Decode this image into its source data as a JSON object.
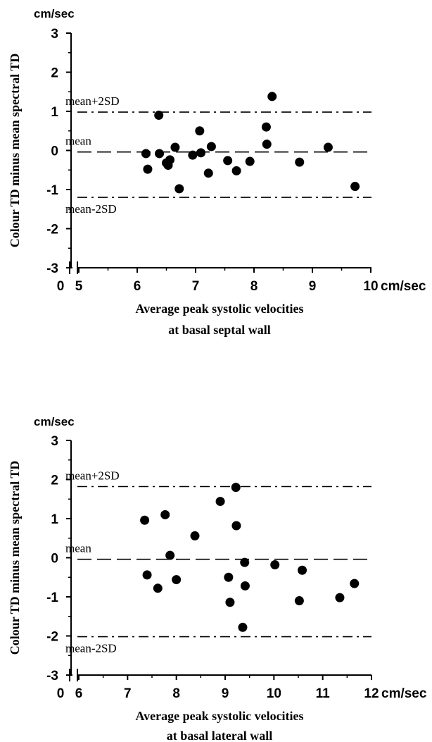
{
  "chart_data": [
    {
      "type": "scatter",
      "y_unit": "cm/sec",
      "ylabel": "Colour TD minus mean spectral TD",
      "xlabel_lines": [
        "Average peak systolic velocities",
        "at basal septal wall"
      ],
      "x_unit": "cm/sec",
      "xlim": [
        5,
        10
      ],
      "ylim": [
        -3,
        3
      ],
      "x_broken_axis_zero_label": "0",
      "x_ticks": [
        "5",
        "6",
        "7",
        "8",
        "9",
        "10"
      ],
      "y_ticks": [
        "3",
        "2",
        "1",
        "0",
        "-1",
        "-2",
        "-3"
      ],
      "reference_lines": [
        {
          "label": "mean+2SD",
          "y": 0.98,
          "style": "dash-dot"
        },
        {
          "label": "mean",
          "y": -0.04,
          "style": "dashed"
        },
        {
          "label": "mean-2SD",
          "y": -1.2,
          "style": "dash-dot"
        }
      ],
      "points": [
        {
          "x": 6.15,
          "y": -0.08
        },
        {
          "x": 6.18,
          "y": -0.48
        },
        {
          "x": 6.37,
          "y": 0.9
        },
        {
          "x": 6.38,
          "y": -0.08
        },
        {
          "x": 6.5,
          "y": -0.32
        },
        {
          "x": 6.53,
          "y": -0.38
        },
        {
          "x": 6.56,
          "y": -0.24
        },
        {
          "x": 6.65,
          "y": 0.08
        },
        {
          "x": 6.72,
          "y": -0.98
        },
        {
          "x": 6.95,
          "y": -0.12
        },
        {
          "x": 7.07,
          "y": 0.5
        },
        {
          "x": 7.09,
          "y": -0.06
        },
        {
          "x": 7.22,
          "y": -0.58
        },
        {
          "x": 7.27,
          "y": 0.1
        },
        {
          "x": 7.55,
          "y": -0.26
        },
        {
          "x": 7.7,
          "y": -0.52
        },
        {
          "x": 7.93,
          "y": -0.28
        },
        {
          "x": 8.21,
          "y": 0.6
        },
        {
          "x": 8.22,
          "y": 0.16
        },
        {
          "x": 8.31,
          "y": 1.38
        },
        {
          "x": 8.78,
          "y": -0.3
        },
        {
          "x": 9.27,
          "y": 0.08
        },
        {
          "x": 9.73,
          "y": -0.92
        }
      ]
    },
    {
      "type": "scatter",
      "y_unit": "cm/sec",
      "ylabel": "Colour TD minus mean spectral TD",
      "xlabel_lines": [
        "Average peak systolic velocities",
        "at basal lateral wall"
      ],
      "x_unit": "cm/sec",
      "xlim": [
        6,
        12
      ],
      "ylim": [
        -3,
        3
      ],
      "x_broken_axis_zero_label": "0",
      "x_ticks": [
        "6",
        "7",
        "8",
        "9",
        "10",
        "11",
        "12"
      ],
      "y_ticks": [
        "3",
        "2",
        "1",
        "0",
        "-1",
        "-2",
        "-3"
      ],
      "reference_lines": [
        {
          "label": "mean+2SD",
          "y": 1.82,
          "style": "dash-dot"
        },
        {
          "label": "mean",
          "y": -0.04,
          "style": "dashed"
        },
        {
          "label": "mean-2SD",
          "y": -2.02,
          "style": "dash-dot"
        }
      ],
      "points": [
        {
          "x": 7.35,
          "y": 0.96
        },
        {
          "x": 7.4,
          "y": -0.44
        },
        {
          "x": 7.62,
          "y": -0.78
        },
        {
          "x": 7.77,
          "y": 1.1
        },
        {
          "x": 7.87,
          "y": 0.06
        },
        {
          "x": 8.0,
          "y": -0.56
        },
        {
          "x": 8.38,
          "y": 0.56
        },
        {
          "x": 8.9,
          "y": 1.44
        },
        {
          "x": 9.07,
          "y": -0.5
        },
        {
          "x": 9.1,
          "y": -1.14
        },
        {
          "x": 9.22,
          "y": 1.8
        },
        {
          "x": 9.23,
          "y": 0.82
        },
        {
          "x": 9.36,
          "y": -1.78
        },
        {
          "x": 9.4,
          "y": -0.12
        },
        {
          "x": 9.41,
          "y": -0.72
        },
        {
          "x": 10.02,
          "y": -0.18
        },
        {
          "x": 10.52,
          "y": -1.1
        },
        {
          "x": 10.58,
          "y": -0.32
        },
        {
          "x": 11.35,
          "y": -1.02
        },
        {
          "x": 11.65,
          "y": -0.66
        }
      ]
    }
  ]
}
